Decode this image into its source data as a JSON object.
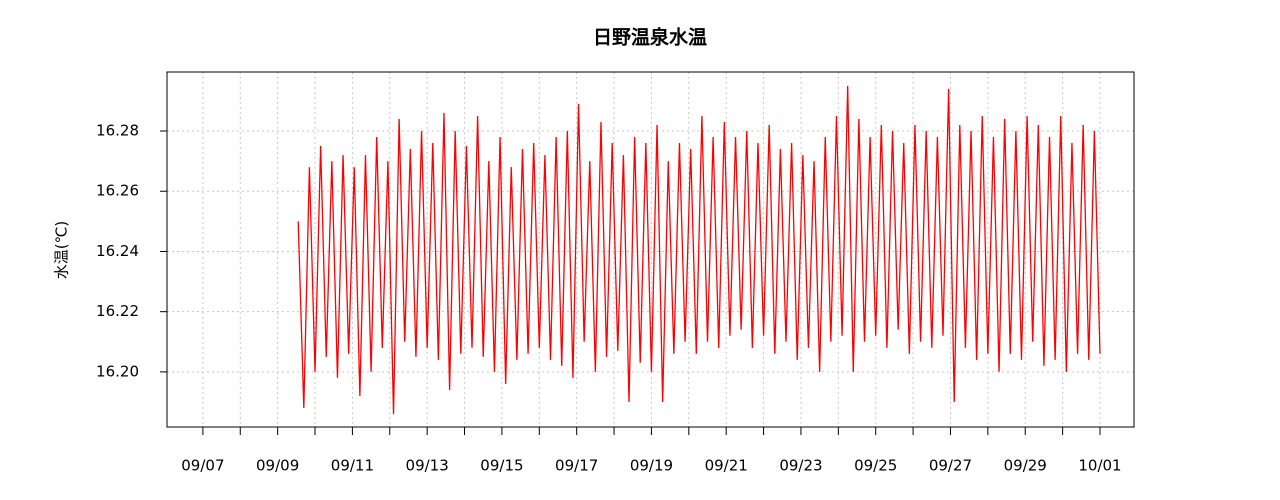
{
  "chart_data": {
    "type": "line",
    "title": "日野温泉水温",
    "y_label": "水温(℃)",
    "grid": true,
    "xlim": [
      6.04,
      31.91
    ],
    "xticks": [
      {
        "value": 7,
        "label": "09/07"
      },
      {
        "value": 9,
        "label": "09/09"
      },
      {
        "value": 11,
        "label": "09/11"
      },
      {
        "value": 13,
        "label": "09/13"
      },
      {
        "value": 15,
        "label": "09/15"
      },
      {
        "value": 17,
        "label": "09/17"
      },
      {
        "value": 19,
        "label": "09/19"
      },
      {
        "value": 21,
        "label": "09/21"
      },
      {
        "value": 23,
        "label": "09/23"
      },
      {
        "value": 25,
        "label": "09/25"
      },
      {
        "value": 27,
        "label": "09/27"
      },
      {
        "value": 29,
        "label": "09/29"
      },
      {
        "value": 31,
        "label": "10/01"
      }
    ],
    "xminorticks": [
      8,
      10,
      12,
      14,
      16,
      18,
      20,
      22,
      24,
      26,
      28,
      30
    ],
    "ylim": [
      16.1817,
      16.2996
    ],
    "yticks": [
      {
        "value": 16.2,
        "label": "16.20"
      },
      16.22,
      16.24,
      16.26,
      16.28
    ],
    "x": [
      9.55,
      9.7,
      9.85,
      10,
      10.15,
      10.3,
      10.45,
      10.6,
      10.75,
      10.9,
      11.05,
      11.2,
      11.35,
      11.5,
      11.65,
      11.8,
      11.95,
      12.1,
      12.25,
      12.4,
      12.55,
      12.7,
      12.85,
      13,
      13.15,
      13.3,
      13.45,
      13.6,
      13.75,
      13.9,
      14.05,
      14.2,
      14.35,
      14.5,
      14.65,
      14.8,
      14.95,
      15.1,
      15.25,
      15.4,
      15.55,
      15.7,
      15.85,
      16,
      16.15,
      16.3,
      16.45,
      16.6,
      16.75,
      16.9,
      17.05,
      17.2,
      17.35,
      17.5,
      17.65,
      17.8,
      17.95,
      18.1,
      18.25,
      18.4,
      18.55,
      18.7,
      18.85,
      19,
      19.15,
      19.3,
      19.45,
      19.6,
      19.75,
      19.9,
      20.05,
      20.2,
      20.35,
      20.5,
      20.65,
      20.8,
      20.95,
      21.1,
      21.25,
      21.4,
      21.55,
      21.7,
      21.85,
      22,
      22.15,
      22.3,
      22.45,
      22.6,
      22.75,
      22.9,
      23.05,
      23.2,
      23.35,
      23.5,
      23.65,
      23.8,
      23.95,
      24.1,
      24.25,
      24.4,
      24.55,
      24.7,
      24.85,
      25,
      25.15,
      25.3,
      25.45,
      25.6,
      25.75,
      25.9,
      26.05,
      26.2,
      26.35,
      26.5,
      26.65,
      26.8,
      26.95,
      27.1,
      27.25,
      27.4,
      27.55,
      27.7,
      27.85,
      28,
      28.15,
      28.3,
      28.45,
      28.6,
      28.75,
      28.9,
      29.05,
      29.2,
      29.35,
      29.5,
      29.65,
      29.8,
      29.95,
      30.1,
      30.25,
      30.4,
      30.55,
      30.7,
      30.85,
      31
    ],
    "series": [
      {
        "color": "#ff0000",
        "values": [
          16.25,
          16.188,
          16.268,
          16.2,
          16.275,
          16.205,
          16.27,
          16.198,
          16.272,
          16.206,
          16.268,
          16.192,
          16.272,
          16.2,
          16.278,
          16.208,
          16.27,
          16.186,
          16.284,
          16.21,
          16.274,
          16.205,
          16.28,
          16.208,
          16.276,
          16.204,
          16.286,
          16.194,
          16.28,
          16.206,
          16.275,
          16.208,
          16.285,
          16.205,
          16.27,
          16.2,
          16.278,
          16.196,
          16.268,
          16.204,
          16.274,
          16.206,
          16.276,
          16.208,
          16.272,
          16.204,
          16.278,
          16.202,
          16.28,
          16.198,
          16.289,
          16.21,
          16.27,
          16.2,
          16.283,
          16.205,
          16.276,
          16.207,
          16.272,
          16.19,
          16.278,
          16.203,
          16.276,
          16.2,
          16.282,
          16.19,
          16.27,
          16.206,
          16.276,
          16.21,
          16.274,
          16.206,
          16.285,
          16.21,
          16.278,
          16.208,
          16.283,
          16.212,
          16.278,
          16.214,
          16.28,
          16.208,
          16.276,
          16.212,
          16.282,
          16.206,
          16.274,
          16.21,
          16.276,
          16.204,
          16.272,
          16.208,
          16.27,
          16.2,
          16.278,
          16.21,
          16.285,
          16.212,
          16.295,
          16.2,
          16.284,
          16.21,
          16.278,
          16.212,
          16.282,
          16.208,
          16.28,
          16.214,
          16.276,
          16.206,
          16.282,
          16.21,
          16.28,
          16.208,
          16.278,
          16.212,
          16.294,
          16.19,
          16.282,
          16.208,
          16.28,
          16.204,
          16.285,
          16.206,
          16.278,
          16.2,
          16.284,
          16.206,
          16.28,
          16.204,
          16.285,
          16.21,
          16.282,
          16.202,
          16.278,
          16.204,
          16.285,
          16.2,
          16.276,
          16.206,
          16.282,
          16.204,
          16.28,
          16.206
        ]
      }
    ]
  }
}
